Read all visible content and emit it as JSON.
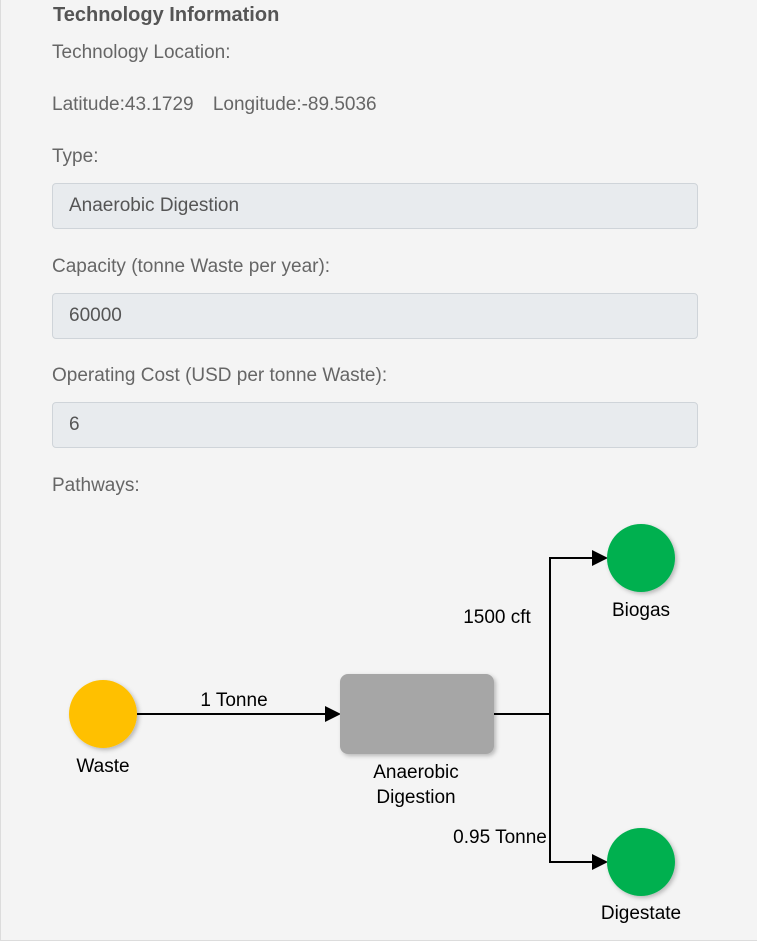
{
  "section_title": "Technology Information",
  "location": {
    "label": "Technology Location:",
    "latitude": "Latitude:43.1729",
    "longitude": "Longitude:-89.5036"
  },
  "type": {
    "label": "Type:",
    "value": "Anaerobic Digestion"
  },
  "capacity": {
    "label": "Capacity (tonne Waste per year):",
    "value": "60000"
  },
  "operating_cost": {
    "label": "Operating Cost (USD per tonne Waste):",
    "value": "6"
  },
  "pathways": {
    "label": "Pathways:",
    "input_node": {
      "name": "Waste",
      "color": "#ffc000"
    },
    "input_edge_label": "1 Tonne",
    "process_node": {
      "name_line1": "Anaerobic",
      "name_line2": "Digestion",
      "color": "#a6a6a6"
    },
    "outputs": [
      {
        "name": "Biogas",
        "edge_label": "1500 cft",
        "color": "#00b050"
      },
      {
        "name": "Digestate",
        "edge_label": "0.95 Tonne",
        "color": "#00b050"
      }
    ]
  }
}
